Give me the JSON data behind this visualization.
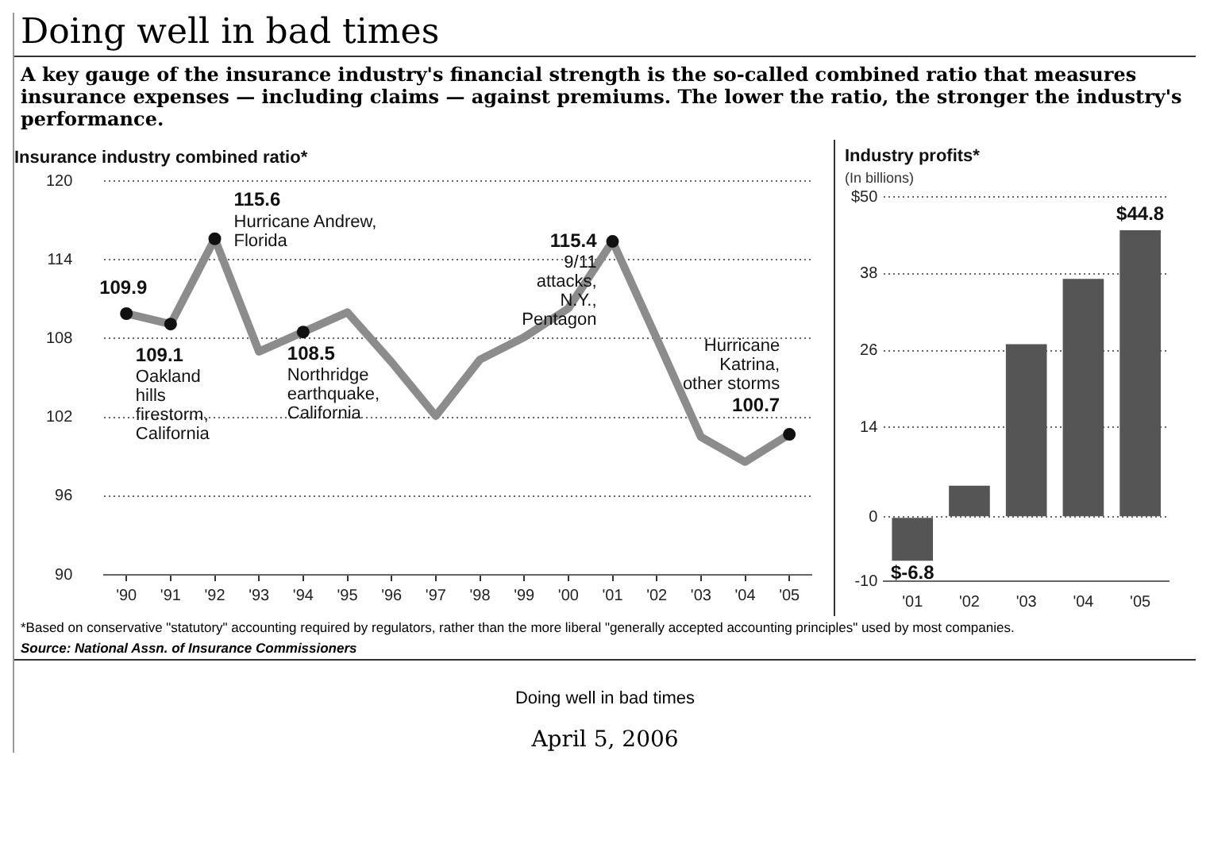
{
  "chart_data": [
    {
      "type": "other",
      "title": "Doing well in bad times",
      "subtitle": "A key gauge of the insurance industry's financial strength is the so-called combined ratio that measures insurance expenses — including claims — against premiums. The lower the ratio, the stronger the industry's performance.",
      "annotations": [
        "*Based on conservative \"statutory\" accounting required by regulators, rather than the more liberal \"generally accepted accounting principles\" used by most companies.",
        "Source: National Assn. of Insurance Commissioners",
        "Doing well in bad times",
        "April 5, 2006"
      ]
    },
    {
      "type": "line",
      "title": "Insurance industry combined ratio*",
      "categories": [
        "'90",
        "'91",
        "'92",
        "'93",
        "'94",
        "'95",
        "'96",
        "'97",
        "'98",
        "'99",
        "'00",
        "'01",
        "'02",
        "'03",
        "'04",
        "'05"
      ],
      "series": [
        {
          "color": "#8c8c8c",
          "values": [
            109.9,
            109.1,
            115.6,
            107.0,
            108.5,
            110.0,
            106.2,
            102.1,
            106.4,
            108.1,
            110.3,
            115.4,
            108.0,
            100.5,
            98.6,
            100.7
          ],
          "value_labels": [
            "109.9",
            "109.1",
            "115.6",
            null,
            "108.5",
            null,
            null,
            null,
            null,
            null,
            null,
            "115.4",
            null,
            null,
            null,
            "100.7"
          ]
        }
      ],
      "ylim": [
        90,
        120
      ],
      "yticks": [
        90,
        96,
        102,
        108,
        114,
        120
      ],
      "grid": "y",
      "line_style": "solid",
      "legend": false,
      "annotations": [
        {
          "text": "Oakland hills firestorm, California",
          "x": "'91",
          "y": 109.1
        },
        {
          "text": "Hurricane Andrew, Florida",
          "x": "'92",
          "y": 115.6
        },
        {
          "text": "Northridge earthquake, California",
          "x": "'94",
          "y": 108.5
        },
        {
          "text": "9/11 attacks, N.Y., Pentagon",
          "x": "'01",
          "y": 115.4
        },
        {
          "text": "Hurricane Katrina, other storms",
          "x": "'05",
          "y": 100.7
        }
      ]
    },
    {
      "type": "bar",
      "title": "Industry profits*",
      "subtitle": "(In billions)",
      "categories": [
        "'01",
        "'02",
        "'03",
        "'04",
        "'05"
      ],
      "values": [
        -6.8,
        4.9,
        27,
        37.2,
        44.8
      ],
      "color": "#555555",
      "value_labels": [
        "$-6.8",
        null,
        null,
        null,
        "$44.8"
      ],
      "ylim": [
        -10,
        50
      ],
      "yticks": [
        -10,
        0,
        14,
        26,
        38,
        {
          "value": 50,
          "label": "$50"
        }
      ],
      "grid": "y",
      "legend": false
    }
  ]
}
